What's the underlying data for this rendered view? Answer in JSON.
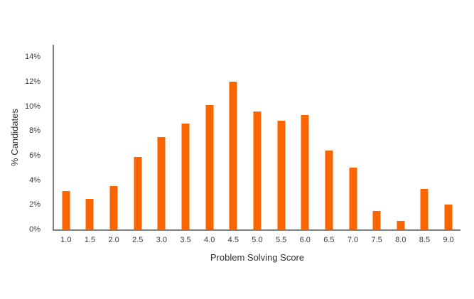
{
  "chart_data": {
    "type": "bar",
    "title": "",
    "xlabel": "Problem Solving Score",
    "ylabel": "% Candidates",
    "categories": [
      "1.0",
      "1.5",
      "2.0",
      "2.5",
      "3.0",
      "3.5",
      "4.0",
      "4.5",
      "5.0",
      "5.5",
      "6.0",
      "6.5",
      "7.0",
      "7.5",
      "8.0",
      "8.5",
      "9.0"
    ],
    "values": [
      3.1,
      2.5,
      3.5,
      5.9,
      7.5,
      8.6,
      10.1,
      12.0,
      9.6,
      8.8,
      9.3,
      6.4,
      5.0,
      1.5,
      0.7,
      3.3,
      2.0
    ],
    "ylim": [
      0,
      15
    ],
    "yticks": [
      0,
      2,
      4,
      6,
      8,
      10,
      12,
      14
    ],
    "ytick_labels": [
      "0%",
      "2%",
      "4%",
      "6%",
      "8%",
      "10%",
      "12%",
      "14%"
    ],
    "grid": false,
    "legend": null
  },
  "colors": {
    "bar": "#fb6500",
    "axis": "#7f7f7f",
    "tick_text": "#3a3a3a",
    "title_text": "#303030",
    "background": "#ffffff"
  }
}
